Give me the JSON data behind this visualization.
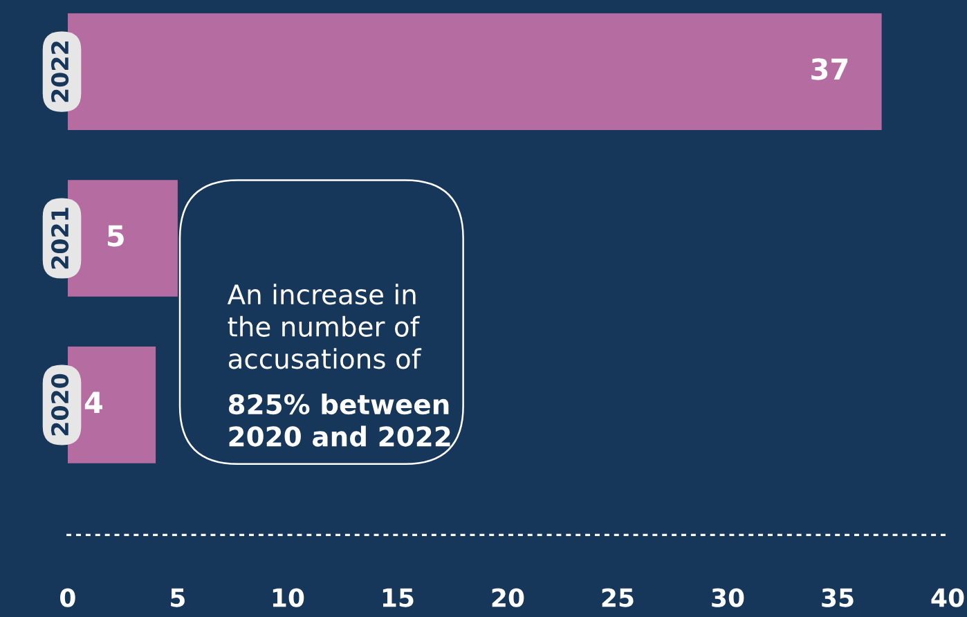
{
  "chart_data": {
    "type": "bar",
    "orientation": "horizontal",
    "categories": [
      "2022",
      "2021",
      "2020"
    ],
    "values": [
      37,
      5,
      4
    ],
    "color": "#b56ca0",
    "xlim": [
      0,
      40
    ],
    "xticks": [
      0,
      5,
      10,
      15,
      20,
      25,
      30,
      35,
      40
    ],
    "data_labels": true,
    "grid": false,
    "annotations": [
      "An increase in\nthe number of\naccusations of",
      "825% between\n2020 and 2022"
    ]
  }
}
